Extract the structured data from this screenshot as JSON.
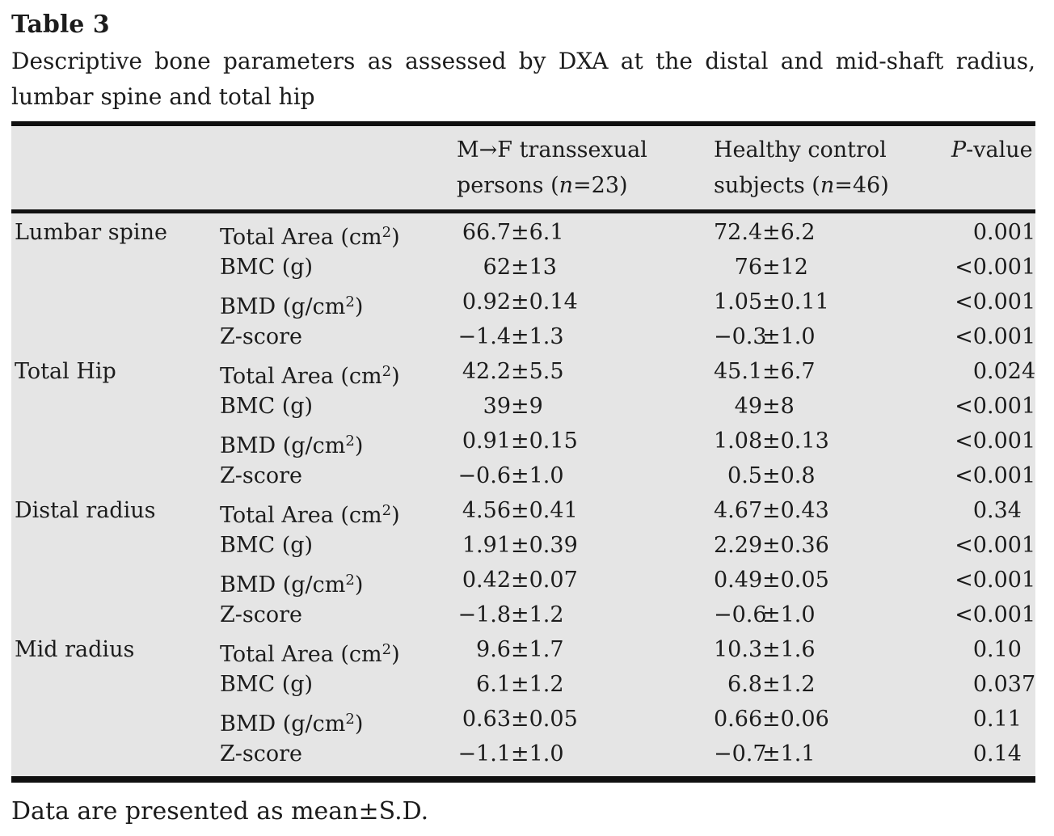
{
  "title": "Table 3",
  "caption_lines": [
    "Descriptive bone parameters as assessed by DXA at the distal and mid-shaft radius,",
    "lumbar spine and total hip"
  ],
  "colors": {
    "table_background": "#e5e5e5",
    "rule": "#101010",
    "text": "#1c1c1c"
  },
  "header": {
    "col3": {
      "line1": "M→F transsexual",
      "line2": [
        {
          "t": "persons ("
        },
        {
          "t": "n",
          "i": true
        },
        {
          "t": "=23)"
        }
      ]
    },
    "col4": {
      "line1": "Healthy control",
      "line2": [
        {
          "t": "subjects ("
        },
        {
          "t": "n",
          "i": true
        },
        {
          "t": "=46)"
        }
      ]
    },
    "col5": [
      {
        "t": "P",
        "i": true
      },
      {
        "t": "-value"
      }
    ]
  },
  "sections": [
    {
      "site": "Lumbar spine",
      "rows": [
        {
          "param": "Total Area (cm²)",
          "mf": "66.7±6.1",
          "control": "72.4±6.2",
          "p": "0.001"
        },
        {
          "param": "BMC (g)",
          "mf": "62±13",
          "control": "76±12",
          "p": "<0.001"
        },
        {
          "param": "BMD (g/cm²)",
          "mf": "0.92±0.14",
          "control": "1.05±0.11",
          "p": "<0.001"
        },
        {
          "param": "Z-score",
          "mf": "−1.4±1.3",
          "control": "−0.3±1.0",
          "p": "<0.001"
        }
      ]
    },
    {
      "site": "Total Hip",
      "rows": [
        {
          "param": "Total Area (cm²)",
          "mf": "42.2±5.5",
          "control": "45.1±6.7",
          "p": "0.024"
        },
        {
          "param": "BMC (g)",
          "mf": "39±9",
          "control": "49±8",
          "p": "<0.001"
        },
        {
          "param": "BMD (g/cm²)",
          "mf": "0.91±0.15",
          "control": "1.08±0.13",
          "p": "<0.001"
        },
        {
          "param": "Z-score",
          "mf": "−0.6±1.0",
          "control": "0.5±0.8",
          "p": "<0.001"
        }
      ]
    },
    {
      "site": "Distal radius",
      "rows": [
        {
          "param": "Total Area (cm²)",
          "mf": "4.56±0.41",
          "control": "4.67±0.43",
          "p": "0.34"
        },
        {
          "param": "BMC (g)",
          "mf": "1.91±0.39",
          "control": "2.29±0.36",
          "p": "<0.001"
        },
        {
          "param": "BMD (g/cm²)",
          "mf": "0.42±0.07",
          "control": "0.49±0.05",
          "p": "<0.001"
        },
        {
          "param": "Z-score",
          "mf": "−1.8±1.2",
          "control": "−0.6±1.0",
          "p": "<0.001"
        }
      ]
    },
    {
      "site": "Mid radius",
      "rows": [
        {
          "param": "Total Area (cm²)",
          "mf": "9.6±1.7",
          "control": "10.3±1.6",
          "p": "0.10"
        },
        {
          "param": "BMC (g)",
          "mf": "6.1±1.2",
          "control": "6.8±1.2",
          "p": "0.037"
        },
        {
          "param": "BMD (g/cm²)",
          "mf": "0.63±0.05",
          "control": "0.66±0.06",
          "p": "0.11"
        },
        {
          "param": "Z-score",
          "mf": "−1.1±1.0",
          "control": "−0.7±1.1",
          "p": "0.14"
        }
      ]
    }
  ],
  "footnote": "Data are presented as mean±S.D."
}
